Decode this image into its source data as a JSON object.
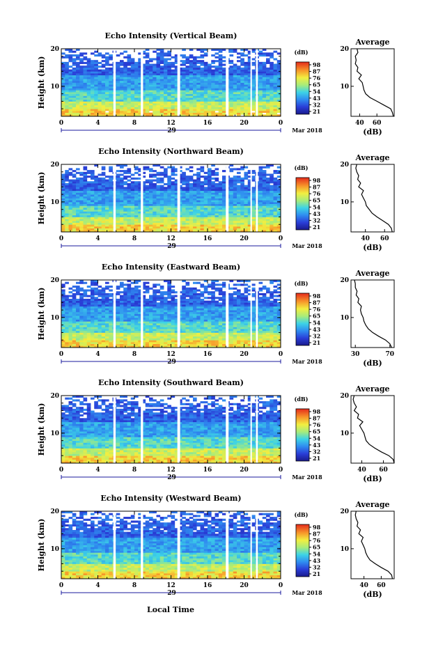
{
  "figure": {
    "x_axis_label": "Local Time",
    "date_label": "29",
    "month_label": "Mar 2018"
  },
  "chart_data": [
    {
      "type": "heatmap",
      "title": "Echo Intensity (Vertical Beam)",
      "ylabel": "Height (km)",
      "ylim": [
        2,
        20
      ],
      "y_ticks": [
        "20",
        "10"
      ],
      "xlim": [
        0,
        24
      ],
      "x_ticks": [
        "0",
        "4",
        "8",
        "12",
        "16",
        "20",
        "0"
      ],
      "colorbar_unit": "(dB)",
      "colorbar_ticks": [
        "98",
        "87",
        "76",
        "65",
        "54",
        "43",
        "32",
        "21"
      ],
      "data_gaps_hours": [
        [
          5.7,
          5.95
        ],
        [
          8.7,
          8.95
        ],
        [
          12.7,
          13.0
        ],
        [
          18.0,
          18.3
        ],
        [
          20.7,
          20.85
        ],
        [
          21.3,
          21.5
        ]
      ],
      "average_profile": {
        "title": "Average",
        "xlabel": "(dB)",
        "x_ticks": [
          "40",
          "60"
        ],
        "xlim": [
          30,
          80
        ],
        "heights_km": [
          2,
          3,
          4,
          5,
          6,
          7,
          8,
          9,
          10,
          11,
          12,
          13,
          14,
          15,
          16,
          17,
          18,
          19,
          20
        ],
        "values_db": [
          79,
          78,
          76,
          68,
          60,
          52,
          47,
          45,
          44,
          43,
          39,
          42,
          37,
          38,
          35,
          36,
          35,
          38,
          37
        ]
      }
    },
    {
      "type": "heatmap",
      "title": "Echo Intensity (Northward Beam)",
      "ylabel": "Height (km)",
      "ylim": [
        2,
        20
      ],
      "y_ticks": [
        "20",
        "10"
      ],
      "xlim": [
        0,
        24
      ],
      "x_ticks": [
        "0",
        "4",
        "8",
        "12",
        "16",
        "20",
        "0"
      ],
      "colorbar_unit": "(dB)",
      "colorbar_ticks": [
        "98",
        "87",
        "76",
        "65",
        "54",
        "43",
        "32",
        "21"
      ],
      "data_gaps_hours": [
        [
          5.7,
          5.95
        ],
        [
          8.7,
          8.95
        ],
        [
          12.7,
          13.0
        ],
        [
          18.0,
          18.3
        ],
        [
          20.7,
          20.85
        ],
        [
          21.3,
          21.5
        ]
      ],
      "average_profile": {
        "title": "Average",
        "xlabel": "(dB)",
        "x_ticks": [
          "40",
          "60"
        ],
        "xlim": [
          25,
          70
        ],
        "heights_km": [
          2,
          3,
          4,
          5,
          6,
          7,
          8,
          9,
          10,
          11,
          12,
          13,
          14,
          15,
          16,
          17,
          18,
          19,
          20
        ],
        "values_db": [
          68,
          67,
          64,
          58,
          52,
          47,
          44,
          41,
          40,
          38,
          36,
          38,
          33,
          35,
          32,
          33,
          31,
          30,
          31
        ]
      }
    },
    {
      "type": "heatmap",
      "title": "Echo Intensity (Eastward Beam)",
      "ylabel": "Height (km)",
      "ylim": [
        2,
        20
      ],
      "y_ticks": [
        "20",
        "10"
      ],
      "xlim": [
        0,
        24
      ],
      "x_ticks": [
        "0",
        "4",
        "8",
        "12",
        "16",
        "20",
        "0"
      ],
      "colorbar_unit": "(dB)",
      "colorbar_ticks": [
        "98",
        "87",
        "76",
        "65",
        "54",
        "43",
        "32",
        "21"
      ],
      "data_gaps_hours": [
        [
          5.7,
          5.95
        ],
        [
          8.7,
          8.95
        ],
        [
          12.7,
          13.0
        ],
        [
          18.0,
          18.3
        ],
        [
          20.7,
          20.85
        ],
        [
          21.3,
          21.5
        ]
      ],
      "average_profile": {
        "title": "Average",
        "xlabel": "(dB)",
        "x_ticks": [
          "30",
          "70"
        ],
        "xlim": [
          25,
          75
        ],
        "heights_km": [
          2,
          3,
          4,
          5,
          6,
          7,
          8,
          9,
          10,
          11,
          12,
          13,
          14,
          15,
          16,
          17,
          18,
          19,
          20
        ],
        "values_db": [
          72,
          70,
          65,
          57,
          50,
          45,
          42,
          40,
          39,
          37,
          36,
          37,
          33,
          34,
          31,
          32,
          30,
          30,
          29
        ]
      }
    },
    {
      "type": "heatmap",
      "title": "Echo Intensity (Southward Beam)",
      "ylabel": "Height (km)",
      "ylim": [
        2,
        20
      ],
      "y_ticks": [
        "20",
        "10"
      ],
      "xlim": [
        0,
        24
      ],
      "x_ticks": [
        "0",
        "4",
        "8",
        "12",
        "16",
        "20",
        "0"
      ],
      "colorbar_unit": "(dB)",
      "colorbar_ticks": [
        "98",
        "87",
        "76",
        "65",
        "54",
        "43",
        "32",
        "21"
      ],
      "data_gaps_hours": [
        [
          5.7,
          5.95
        ],
        [
          8.7,
          8.95
        ],
        [
          12.7,
          13.0
        ],
        [
          18.0,
          18.3
        ],
        [
          20.7,
          20.85
        ],
        [
          21.3,
          21.5
        ]
      ],
      "average_profile": {
        "title": "Average",
        "xlabel": "(dB)",
        "x_ticks": [
          "40",
          "60"
        ],
        "xlim": [
          30,
          70
        ],
        "heights_km": [
          2,
          3,
          4,
          5,
          6,
          7,
          8,
          9,
          10,
          11,
          12,
          13,
          14,
          15,
          16,
          17,
          18,
          19,
          20
        ],
        "values_db": [
          70,
          69,
          65,
          58,
          52,
          47,
          44,
          43,
          42,
          40,
          38,
          41,
          36,
          37,
          33,
          35,
          33,
          32,
          33
        ]
      }
    },
    {
      "type": "heatmap",
      "title": "Echo Intensity (Westward Beam)",
      "ylabel": "Height (km)",
      "ylim": [
        2,
        20
      ],
      "y_ticks": [
        "20",
        "10"
      ],
      "xlim": [
        0,
        24
      ],
      "x_ticks": [
        "0",
        "4",
        "8",
        "12",
        "16",
        "20",
        "0"
      ],
      "colorbar_unit": "(dB)",
      "colorbar_ticks": [
        "98",
        "87",
        "76",
        "65",
        "54",
        "43",
        "32",
        "21"
      ],
      "data_gaps_hours": [
        [
          5.7,
          5.95
        ],
        [
          8.7,
          8.95
        ],
        [
          12.7,
          13.0
        ],
        [
          18.0,
          18.3
        ],
        [
          20.7,
          20.85
        ],
        [
          21.3,
          21.5
        ]
      ],
      "average_profile": {
        "title": "Average",
        "xlabel": "(dB)",
        "x_ticks": [
          "40",
          "60"
        ],
        "xlim": [
          25,
          75
        ],
        "heights_km": [
          2,
          3,
          4,
          5,
          6,
          7,
          8,
          9,
          10,
          11,
          12,
          13,
          14,
          15,
          16,
          17,
          18,
          19,
          20
        ],
        "values_db": [
          73,
          72,
          68,
          60,
          53,
          47,
          44,
          42,
          41,
          39,
          37,
          39,
          34,
          36,
          32,
          33,
          31,
          30,
          31
        ]
      }
    }
  ]
}
